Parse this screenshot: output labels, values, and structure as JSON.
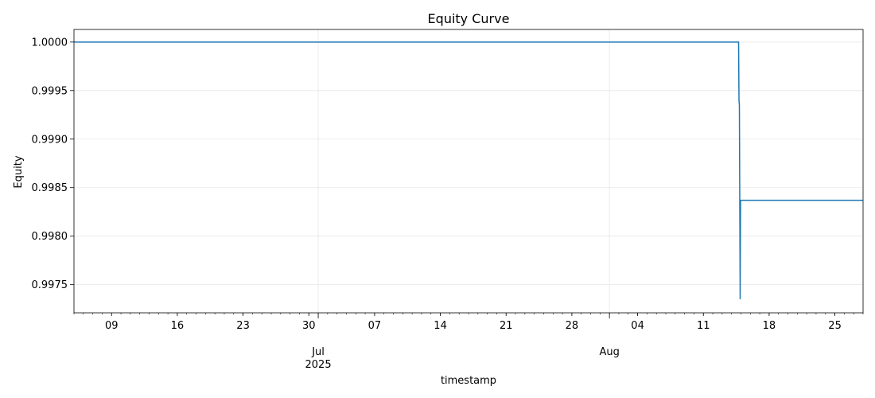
{
  "chart_data": {
    "type": "line",
    "title": "Equity Curve",
    "xlabel": "timestamp",
    "ylabel": "Equity",
    "x_axis_type": "date",
    "xlim": [
      "2025-06-05",
      "2025-08-28"
    ],
    "ylim": [
      0.99721,
      1.00013
    ],
    "grid": true,
    "line_color": "#1f77b4",
    "y_ticks": [
      0.9975,
      0.998,
      0.9985,
      0.999,
      0.9995,
      1.0
    ],
    "y_tick_labels": [
      "0.9975",
      "0.9980",
      "0.9985",
      "0.9990",
      "0.9995",
      "1.0000"
    ],
    "x_major_ticks": [
      {
        "date": "2025-06-09",
        "label": "09"
      },
      {
        "date": "2025-06-16",
        "label": "16"
      },
      {
        "date": "2025-06-23",
        "label": "23"
      },
      {
        "date": "2025-06-30",
        "label": "30"
      },
      {
        "date": "2025-07-07",
        "label": "07"
      },
      {
        "date": "2025-07-14",
        "label": "14"
      },
      {
        "date": "2025-07-21",
        "label": "21"
      },
      {
        "date": "2025-07-28",
        "label": "28"
      },
      {
        "date": "2025-08-04",
        "label": "04"
      },
      {
        "date": "2025-08-11",
        "label": "11"
      },
      {
        "date": "2025-08-18",
        "label": "18"
      },
      {
        "date": "2025-08-25",
        "label": "25"
      }
    ],
    "x_month_ticks": [
      {
        "date": "2025-07-01",
        "label": "Jul",
        "sublabel": "2025"
      },
      {
        "date": "2025-08-01",
        "label": "Aug",
        "sublabel": ""
      }
    ],
    "series": [
      {
        "points": [
          [
            "2025-06-05",
            1.0
          ],
          [
            "2025-08-14T18:00",
            1.0
          ],
          [
            "2025-08-14T19:00",
            0.9994
          ],
          [
            "2025-08-14T20:00",
            0.99935
          ],
          [
            "2025-08-14T22:00",
            0.99735
          ],
          [
            "2025-08-14T23:00",
            0.99837
          ],
          [
            "2025-08-28",
            0.99837
          ]
        ]
      }
    ]
  }
}
